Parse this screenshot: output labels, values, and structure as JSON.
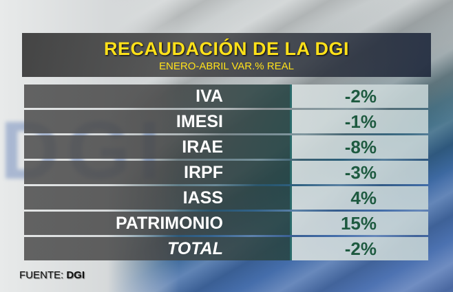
{
  "header": {
    "title": "RECAUDACIÓN DE LA DGI",
    "subtitle": "ENERO-ABRIL VAR.% REAL"
  },
  "background_text": "DGI",
  "table": {
    "rows": [
      {
        "label": "IVA",
        "value": "-2%"
      },
      {
        "label": "IMESI",
        "value": "-1%"
      },
      {
        "label": "IRAE",
        "value": "-8%"
      },
      {
        "label": "IRPF",
        "value": "-3%"
      },
      {
        "label": "IASS",
        "value": "4%"
      },
      {
        "label": "PATRIMONIO",
        "value": "15%"
      },
      {
        "label": "TOTAL",
        "value": "-2%"
      }
    ]
  },
  "source": {
    "label": "FUENTE:",
    "value": "DGI"
  },
  "colors": {
    "title": "#ffe11a",
    "value_text": "#1e5a40",
    "label_text": "#ffffff"
  }
}
